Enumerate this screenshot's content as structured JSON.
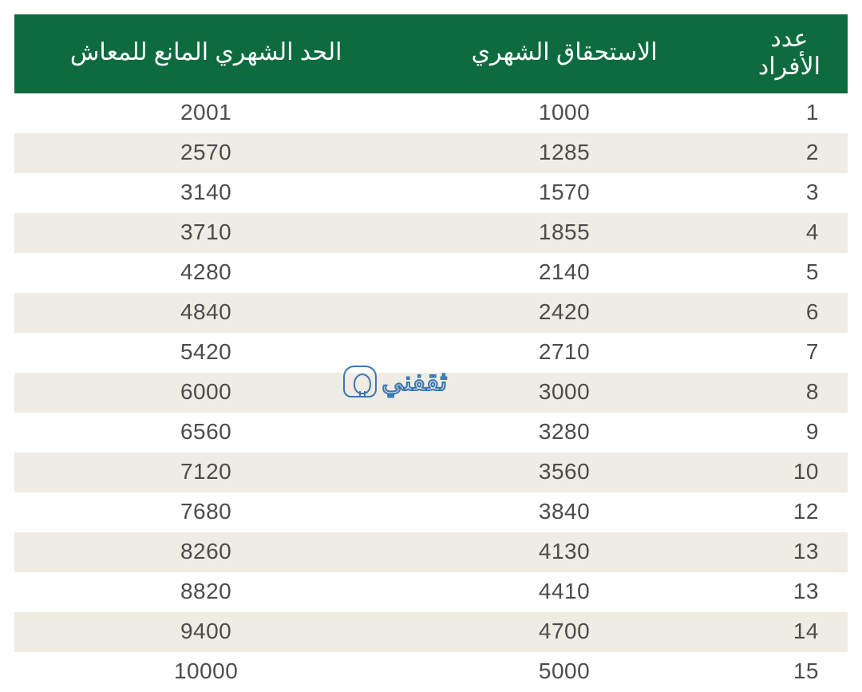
{
  "table": {
    "header_bg": "#0e6b3f",
    "header_text_color": "#ffffff",
    "body_text_color": "#4c4c4c",
    "row_bg_odd": "#ffffff",
    "row_bg_even": "#efece3",
    "columns": [
      {
        "key": "count",
        "label": "عدد\nالأفراد"
      },
      {
        "key": "monthly",
        "label": "الاستحقاق الشهري"
      },
      {
        "key": "limit",
        "label": "الحد الشهري المانع للمعاش"
      }
    ],
    "rows": [
      {
        "count": "1",
        "monthly": "1000",
        "limit": "2001"
      },
      {
        "count": "2",
        "monthly": "1285",
        "limit": "2570"
      },
      {
        "count": "3",
        "monthly": "1570",
        "limit": "3140"
      },
      {
        "count": "4",
        "monthly": "1855",
        "limit": "3710"
      },
      {
        "count": "5",
        "monthly": "2140",
        "limit": "4280"
      },
      {
        "count": "6",
        "monthly": "2420",
        "limit": "4840"
      },
      {
        "count": "7",
        "monthly": "2710",
        "limit": "5420"
      },
      {
        "count": "8",
        "monthly": "3000",
        "limit": "6000"
      },
      {
        "count": "9",
        "monthly": "3280",
        "limit": "6560"
      },
      {
        "count": "10",
        "monthly": "3560",
        "limit": "7120"
      },
      {
        "count": "12",
        "monthly": "3840",
        "limit": "7680"
      },
      {
        "count": "13",
        "monthly": "4130",
        "limit": "8260"
      },
      {
        "count": "13",
        "monthly": "4410",
        "limit": "8820"
      },
      {
        "count": "14",
        "monthly": "4700",
        "limit": "9400"
      },
      {
        "count": "15",
        "monthly": "5000",
        "limit": "10000"
      }
    ]
  },
  "watermark": {
    "text": "ثقفني",
    "color": "#3a77b4"
  }
}
